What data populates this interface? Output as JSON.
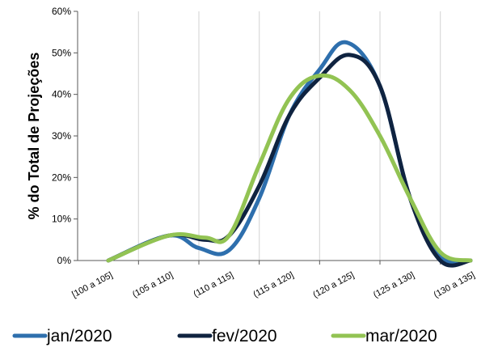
{
  "chart_data": {
    "type": "line",
    "title": "",
    "xlabel": "",
    "ylabel": "% do Total de Projeções",
    "categories": [
      "[100 a 105]",
      "(105 a 110]",
      "(110 a 115]",
      "(115 a 120]",
      "(120 a 125]",
      "(125 a 130]",
      "(130 a 135]"
    ],
    "ylim": [
      0,
      60
    ],
    "yticks": [
      "0%",
      "10%",
      "20%",
      "30%",
      "40%",
      "50%",
      "60%"
    ],
    "y_tick_values": [
      0,
      10,
      20,
      30,
      40,
      50,
      60
    ],
    "grid": "vertical",
    "legend": "bottom",
    "smooth": true,
    "x": [
      0,
      1,
      2,
      3,
      4,
      5,
      6
    ],
    "series": [
      {
        "name": "jan/2020",
        "color": "#2e6fad",
        "points": [
          [
            0,
            0
          ],
          [
            1,
            6
          ],
          [
            1.5,
            3
          ],
          [
            2,
            2.5
          ],
          [
            2.5,
            15
          ],
          [
            3,
            35
          ],
          [
            3.5,
            46
          ],
          [
            3.95,
            52.5
          ],
          [
            4.5,
            42
          ],
          [
            5,
            15
          ],
          [
            5.5,
            1
          ],
          [
            6,
            0
          ]
        ]
      },
      {
        "name": "fev/2020",
        "color": "#0f2340",
        "points": [
          [
            0,
            0
          ],
          [
            1,
            6
          ],
          [
            1.6,
            5
          ],
          [
            2,
            6
          ],
          [
            2.5,
            18
          ],
          [
            3,
            35
          ],
          [
            3.5,
            44
          ],
          [
            4,
            49.5
          ],
          [
            4.5,
            42
          ],
          [
            5,
            15
          ],
          [
            5.5,
            0
          ],
          [
            6,
            0
          ]
        ]
      },
      {
        "name": "mar/2020",
        "color": "#92c353",
        "points": [
          [
            0,
            0
          ],
          [
            1,
            6
          ],
          [
            1.6,
            5.5
          ],
          [
            2,
            6
          ],
          [
            2.5,
            23
          ],
          [
            3,
            39
          ],
          [
            3.5,
            44.5
          ],
          [
            4,
            41
          ],
          [
            4.5,
            30
          ],
          [
            5,
            15
          ],
          [
            5.5,
            2
          ],
          [
            6,
            0
          ]
        ]
      }
    ]
  }
}
